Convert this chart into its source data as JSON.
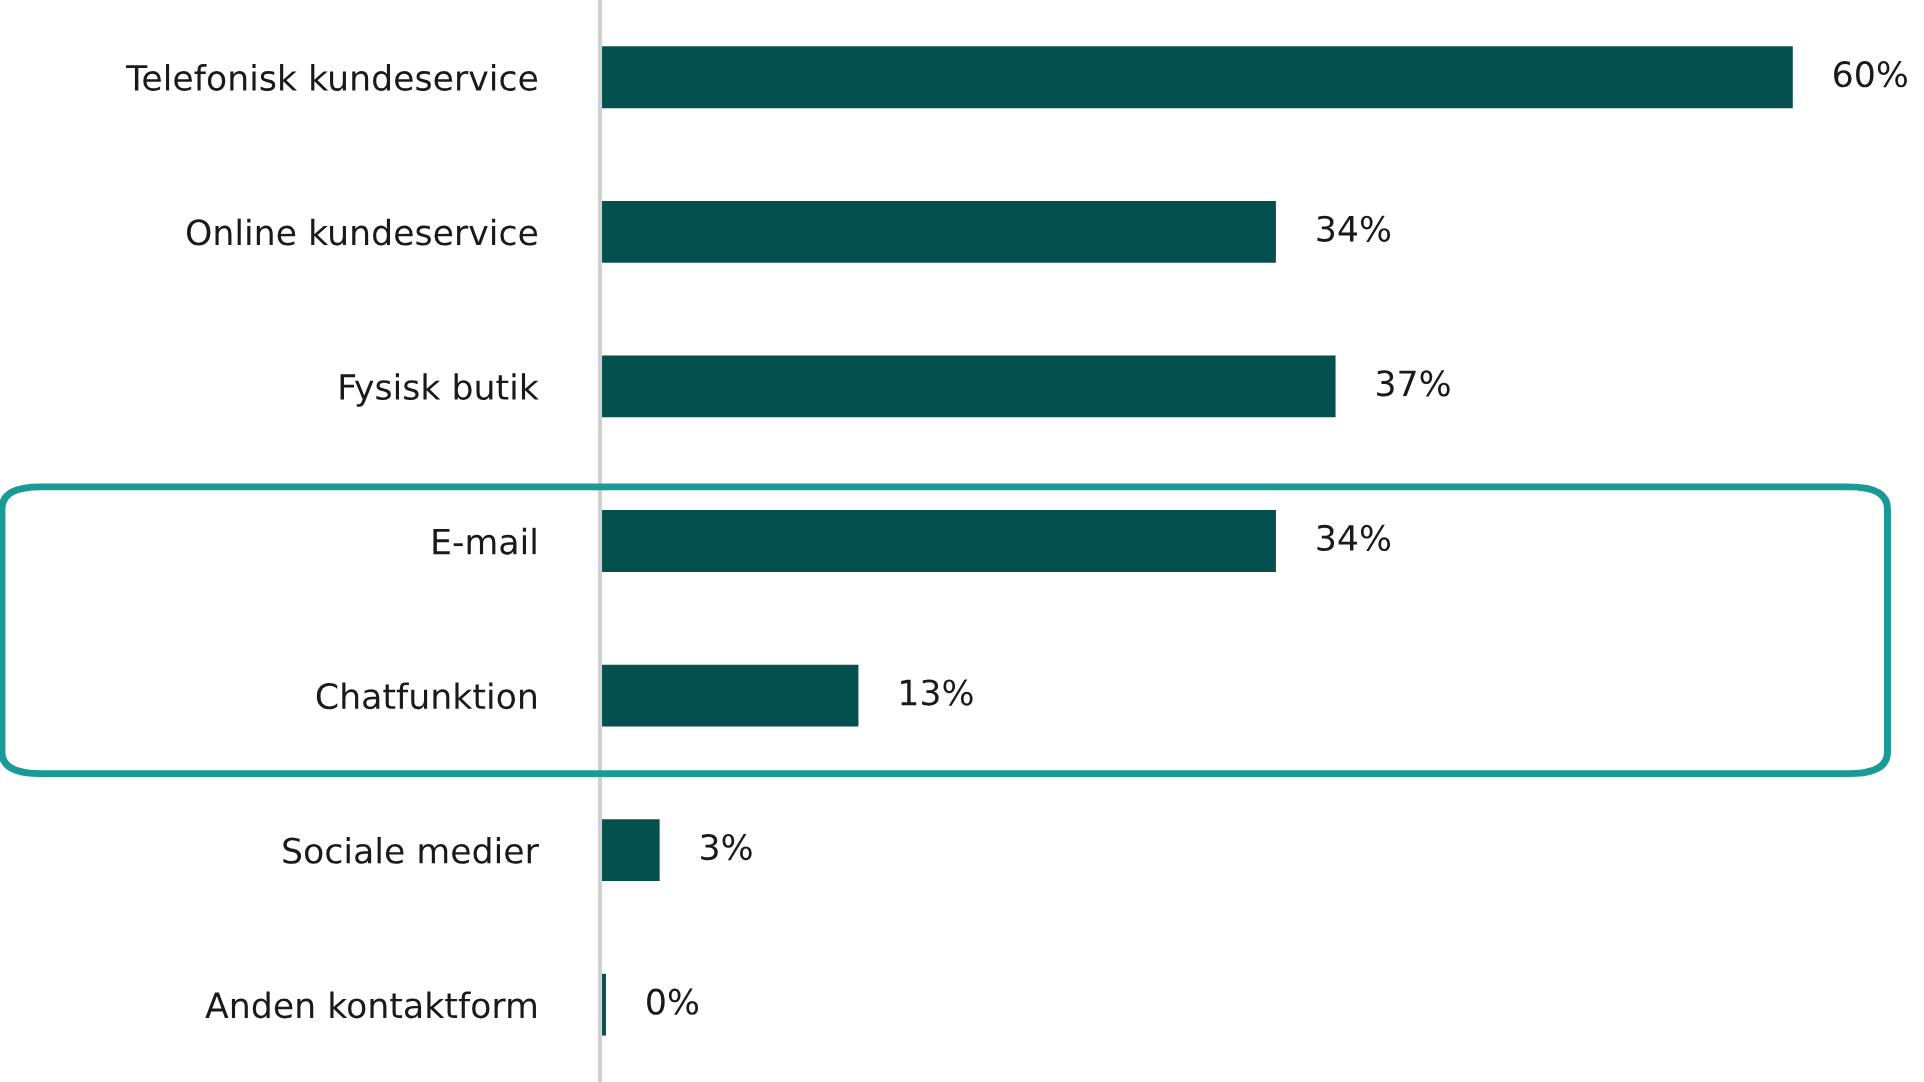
{
  "chart_data": {
    "type": "bar",
    "orientation": "horizontal",
    "categories": [
      "Telefonisk kundeservice",
      "Online kundeservice",
      "Fysisk butik",
      "E-mail",
      "Chatfunktion",
      "Sociale medier",
      "Anden kontaktform"
    ],
    "values": [
      60,
      34,
      37,
      34,
      13,
      3,
      0.3
    ],
    "value_labels": [
      "60%",
      "34%",
      "37%",
      "34%",
      "13%",
      "3%",
      "0%"
    ],
    "color": "#03504f",
    "grid": false
  }
}
